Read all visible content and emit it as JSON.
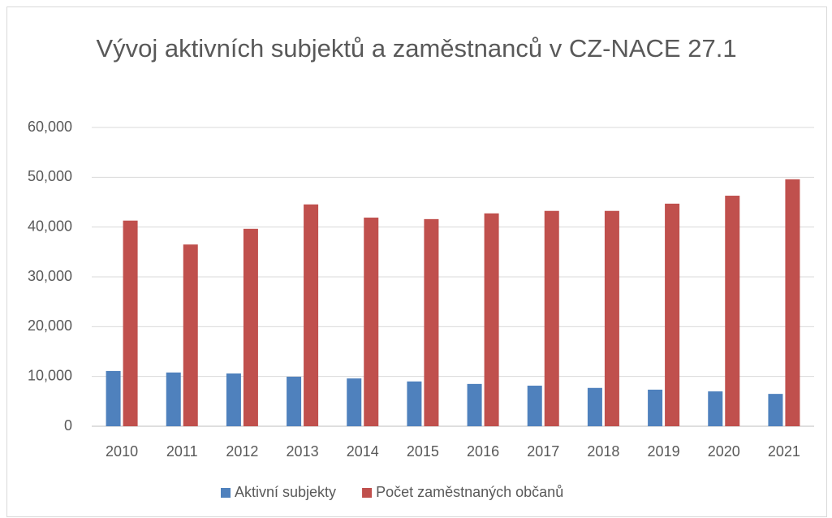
{
  "chart_data": {
    "type": "bar",
    "title": "Vývoj aktivních subjektů a zaměstnanců v CZ-NACE 27.1",
    "categories": [
      "2010",
      "2011",
      "2012",
      "2013",
      "2014",
      "2015",
      "2016",
      "2017",
      "2018",
      "2019",
      "2020",
      "2021"
    ],
    "series": [
      {
        "name": "Aktivní subjekty",
        "color": "#4f81bd",
        "values": [
          11100,
          10800,
          10600,
          9950,
          9600,
          9000,
          8500,
          8150,
          7700,
          7350,
          7000,
          6500
        ]
      },
      {
        "name": "Počet zaměstnaných občanů",
        "color": "#c0504d",
        "values": [
          41300,
          36500,
          39650,
          44550,
          41900,
          41600,
          42750,
          43250,
          43250,
          44700,
          46300,
          49600
        ]
      }
    ],
    "ylim": [
      0,
      60000
    ],
    "yticks": [
      0,
      {
        "value": 10000,
        "label": "10,000"
      },
      {
        "value": 20000,
        "label": "20,000"
      },
      {
        "value": 30000,
        "label": "30,000"
      },
      {
        "value": 40000,
        "label": "40,000"
      },
      {
        "value": 50000,
        "label": "50,000"
      },
      {
        "value": 60000,
        "label": "60,000"
      }
    ],
    "grid": true,
    "legend": "bottom"
  }
}
